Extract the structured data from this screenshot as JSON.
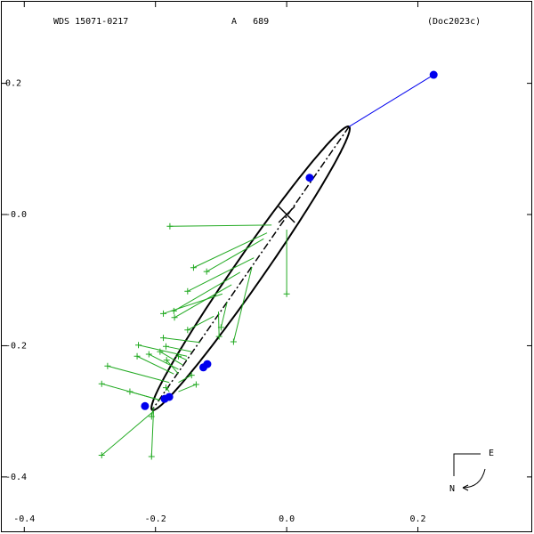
{
  "chart_data": {
    "type": "orbit",
    "title": "WDS 15071-0217",
    "subtitle": "A   689",
    "reference": "(Doc2023c)",
    "compass": {
      "east": "E",
      "north": "N"
    },
    "xlim": [
      -0.437,
      0.377
    ],
    "ylim": [
      -0.487,
      0.327
    ],
    "xticks": [
      -0.4,
      -0.2,
      {
        "value": 0,
        "label": "0.0"
      },
      0.2
    ],
    "yticks": [
      0.2,
      {
        "value": 0,
        "label": "-0.0"
      },
      -0.2,
      -0.4
    ],
    "primary": [
      0,
      0
    ],
    "orbit": {
      "center": [
        -0.055,
        -0.082
      ],
      "a": 0.263,
      "b": 0.022,
      "angle": 55.2,
      "color": "#000000"
    },
    "observations": {
      "color": "#22aa22",
      "points": [
        {
          "x": -0.178,
          "y": -0.018,
          "ox": -0.023,
          "oy": -0.016
        },
        {
          "x": -0.142,
          "y": -0.081,
          "ox": -0.03,
          "oy": -0.028
        },
        {
          "x": -0.122,
          "y": -0.087,
          "ox": -0.035,
          "oy": -0.037
        },
        {
          "x": -0.151,
          "y": -0.117,
          "ox": -0.05,
          "oy": -0.066
        },
        {
          "x": -0.172,
          "y": -0.147,
          "ox": -0.071,
          "oy": -0.088
        },
        {
          "x": -0.188,
          "y": -0.151,
          "ox": -0.098,
          "oy": -0.121
        },
        {
          "x": -0.171,
          "y": -0.157,
          "ox": -0.084,
          "oy": -0.107
        },
        {
          "x": -0.151,
          "y": -0.176,
          "ox": -0.111,
          "oy": -0.155
        },
        {
          "x": -0.1,
          "y": -0.172,
          "ox": -0.091,
          "oy": -0.134
        },
        {
          "x": -0.081,
          "y": -0.194,
          "ox": -0.053,
          "oy": -0.08
        },
        {
          "x": -0.103,
          "y": -0.186,
          "ox": -0.104,
          "oy": -0.148
        },
        {
          "x": -0.188,
          "y": -0.188,
          "ox": -0.132,
          "oy": -0.195
        },
        {
          "x": -0.184,
          "y": -0.201,
          "ox": -0.145,
          "oy": -0.209
        },
        {
          "x": -0.226,
          "y": -0.199,
          "ox": -0.152,
          "oy": -0.216
        },
        {
          "x": -0.228,
          "y": -0.216,
          "ox": -0.172,
          "oy": -0.243
        },
        {
          "x": -0.21,
          "y": -0.213,
          "ox": -0.165,
          "oy": -0.236
        },
        {
          "x": -0.193,
          "y": -0.209,
          "ox": -0.159,
          "oy": -0.229
        },
        {
          "x": -0.183,
          "y": -0.222,
          "ox": -0.165,
          "oy": -0.243
        },
        {
          "x": -0.165,
          "y": -0.216,
          "ox": -0.152,
          "oy": -0.222
        },
        {
          "x": -0.273,
          "y": -0.231,
          "ox": -0.179,
          "oy": -0.256
        },
        {
          "x": -0.282,
          "y": -0.258,
          "ox": -0.193,
          "oy": -0.283
        },
        {
          "x": -0.239,
          "y": -0.27,
          "ox": -0.193,
          "oy": -0.283
        },
        {
          "x": -0.184,
          "y": -0.264,
          "ox": -0.179,
          "oy": -0.27
        },
        {
          "x": -0.145,
          "y": -0.245,
          "ox": -0.165,
          "oy": -0.256
        },
        {
          "x": -0.138,
          "y": -0.259,
          "ox": -0.165,
          "oy": -0.27
        },
        {
          "x": -0.206,
          "y": -0.308,
          "ox": -0.203,
          "oy": -0.294
        },
        {
          "x": -0.282,
          "y": -0.367,
          "ox": -0.203,
          "oy": -0.3
        },
        {
          "x": -0.206,
          "y": -0.369,
          "ox": -0.203,
          "oy": -0.3
        },
        {
          "x": 0.0,
          "y": -0.121,
          "ox": 0.0,
          "oy": -0.023
        }
      ]
    },
    "recent": {
      "color": "#0000ee",
      "points": [
        {
          "x": 0.224,
          "y": 0.213
        },
        {
          "x": 0.035,
          "y": 0.056
        },
        {
          "x": -0.216,
          "y": -0.292
        },
        {
          "x": -0.186,
          "y": -0.281
        },
        {
          "x": -0.179,
          "y": -0.278
        },
        {
          "x": -0.127,
          "y": -0.233
        },
        {
          "x": -0.121,
          "y": -0.228
        }
      ]
    }
  }
}
